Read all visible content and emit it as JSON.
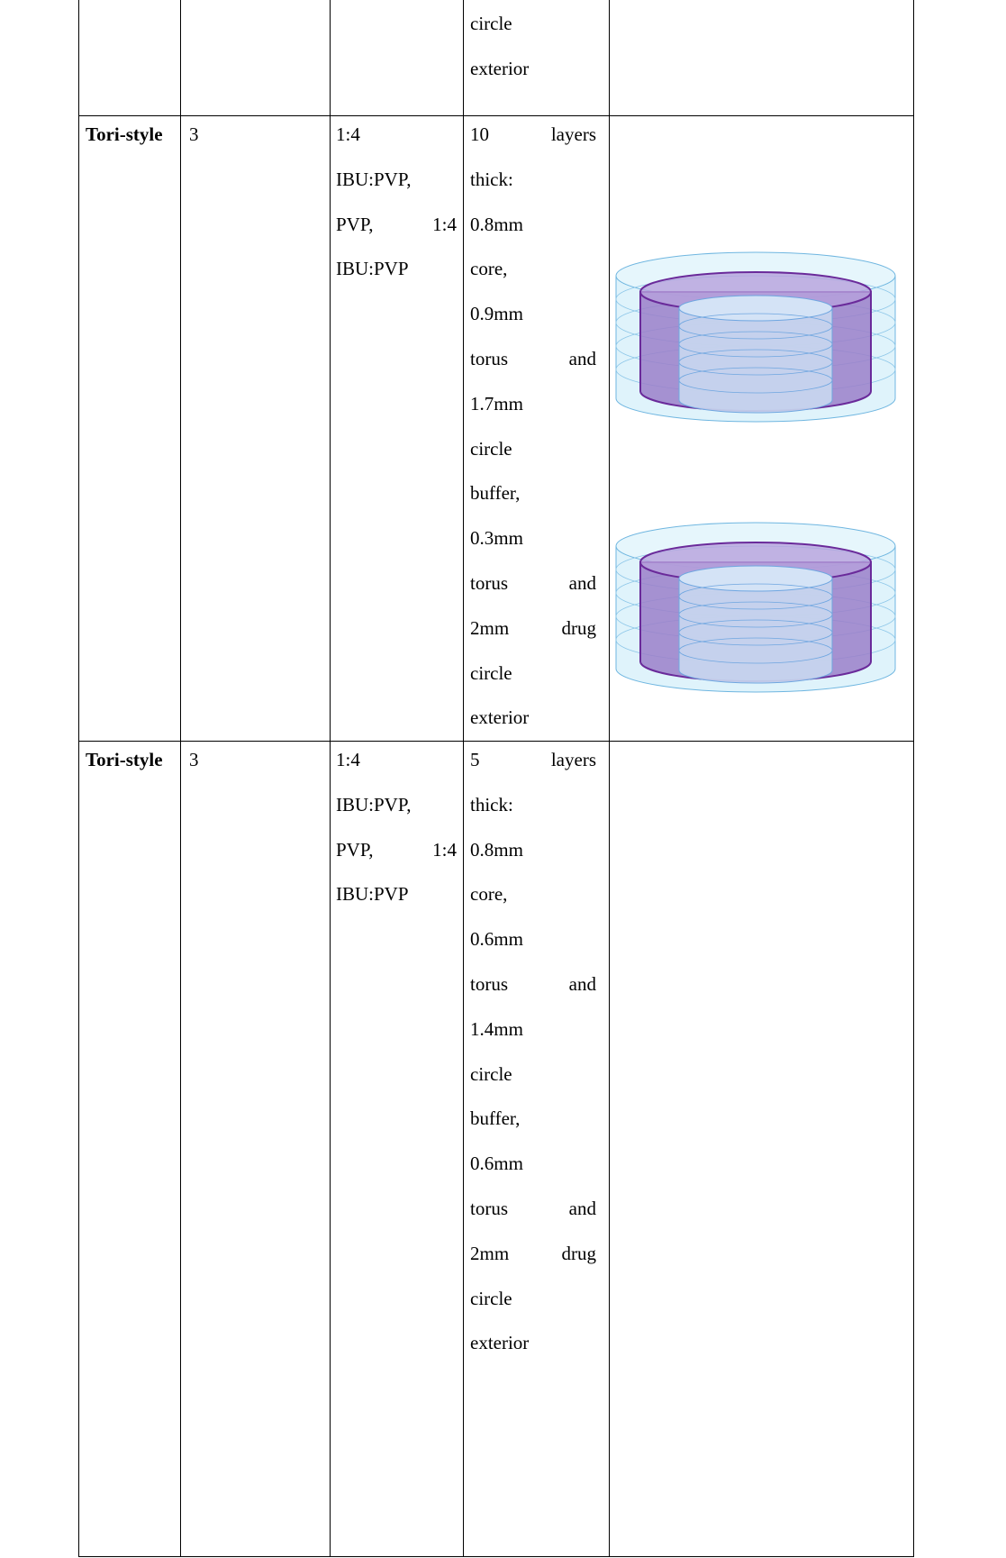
{
  "table": {
    "rows": [
      {
        "col4": [
          "circle",
          "exterior"
        ]
      },
      {
        "col1": "Tori-style",
        "col2": 3,
        "col3": [
          "1:4",
          "IBU:PVP,",
          "PVP, 1:4",
          "IBU:PVP"
        ],
        "col4": [
          "10 layers",
          "thick:",
          "0.8mm",
          "core,",
          "0.9mm",
          "torus and",
          "1.7mm",
          "circle",
          "buffer,",
          "0.3mm",
          "torus and",
          "2mm drug",
          "circle",
          "exterior"
        ]
      },
      {
        "col1": "Tori-style",
        "col2": 3,
        "col3": [
          "1:4",
          "IBU:PVP,",
          "PVP, 1:4",
          "IBU:PVP"
        ],
        "col4": [
          "5 layers",
          "thick:",
          "0.8mm",
          "core,",
          "0.6mm",
          "torus and",
          "1.4mm",
          "circle",
          "buffer,",
          "0.6mm",
          "torus and",
          "2mm drug",
          "circle",
          "exterior"
        ]
      }
    ]
  }
}
